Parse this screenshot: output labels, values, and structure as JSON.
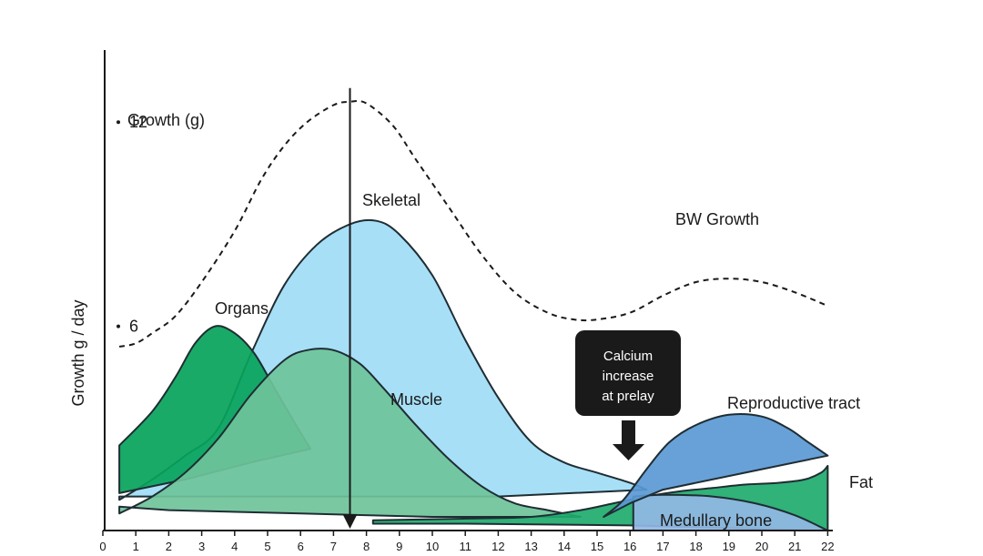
{
  "chart_data": {
    "type": "area",
    "ylabel": "Growth g / day",
    "x_ticks": [
      "0",
      "1",
      "2",
      "3",
      "4",
      "5",
      "6",
      "7",
      "8",
      "9",
      "10",
      "11",
      "12",
      "13",
      "14",
      "15",
      "16",
      "17",
      "18",
      "19",
      "20",
      "21",
      "22"
    ],
    "y_ticks": [
      {
        "value": 12,
        "label": "12"
      },
      {
        "value": 6,
        "label": "6"
      }
    ],
    "xlim": [
      0,
      22
    ],
    "ylim": [
      0,
      13.5
    ],
    "grid": false,
    "inline_note": "Growth (g)",
    "series": [
      {
        "name": "Skeletal",
        "style": "area",
        "color": "#9fdcf5",
        "upper": [
          [
            0.5,
            0.9
          ],
          [
            1.5,
            1.5
          ],
          [
            2.5,
            2.2
          ],
          [
            3.5,
            3.0
          ],
          [
            4.5,
            5.2
          ],
          [
            5.5,
            7.2
          ],
          [
            6.5,
            8.4
          ],
          [
            7.5,
            9.0
          ],
          [
            8.3,
            9.1
          ],
          [
            9.0,
            8.7
          ],
          [
            10.0,
            7.5
          ],
          [
            11.0,
            5.6
          ],
          [
            12.0,
            3.9
          ],
          [
            13.0,
            2.6
          ],
          [
            14.0,
            2.0
          ],
          [
            15.0,
            1.7
          ],
          [
            16.0,
            1.4
          ],
          [
            16.5,
            1.2
          ]
        ],
        "lower": [
          [
            16.5,
            1.2
          ],
          [
            12.0,
            1.0
          ],
          [
            8.0,
            1.0
          ],
          [
            4.0,
            1.0
          ],
          [
            0.5,
            1.0
          ]
        ]
      },
      {
        "name": "Organs",
        "style": "area",
        "color": "#07a35a",
        "upper": [
          [
            0.5,
            2.5
          ],
          [
            1.5,
            3.5
          ],
          [
            2.2,
            4.5
          ],
          [
            2.8,
            5.5
          ],
          [
            3.4,
            6.0
          ],
          [
            4.0,
            5.8
          ],
          [
            4.6,
            5.2
          ],
          [
            5.2,
            4.2
          ],
          [
            5.8,
            3.2
          ],
          [
            6.3,
            2.4
          ]
        ],
        "lower": [
          [
            6.3,
            2.4
          ],
          [
            4.5,
            2.0
          ],
          [
            2.5,
            1.5
          ],
          [
            0.5,
            1.1
          ]
        ]
      },
      {
        "name": "Muscle",
        "style": "area",
        "color": "#6fc39a",
        "upper": [
          [
            0.5,
            0.5
          ],
          [
            1.5,
            1.0
          ],
          [
            2.5,
            1.7
          ],
          [
            3.5,
            2.7
          ],
          [
            4.5,
            4.0
          ],
          [
            5.5,
            5.0
          ],
          [
            6.2,
            5.3
          ],
          [
            7.0,
            5.3
          ],
          [
            7.8,
            4.9
          ],
          [
            8.5,
            4.2
          ],
          [
            9.5,
            3.1
          ],
          [
            10.5,
            2.1
          ],
          [
            11.5,
            1.3
          ],
          [
            12.5,
            0.8
          ],
          [
            13.5,
            0.6
          ],
          [
            14.5,
            0.4
          ]
        ],
        "lower": [
          [
            14.5,
            0.4
          ],
          [
            10.0,
            0.4
          ],
          [
            6.0,
            0.5
          ],
          [
            2.0,
            0.6
          ],
          [
            0.5,
            0.7
          ]
        ]
      },
      {
        "name": "Fat",
        "style": "area",
        "color": "#1eab6c",
        "upper": [
          [
            8.2,
            0.3
          ],
          [
            11.0,
            0.35
          ],
          [
            13.0,
            0.4
          ],
          [
            14.5,
            0.6
          ],
          [
            15.5,
            0.8
          ],
          [
            16.5,
            1.0
          ],
          [
            17.5,
            1.15
          ],
          [
            18.5,
            1.25
          ],
          [
            19.5,
            1.35
          ],
          [
            20.5,
            1.4
          ],
          [
            21.3,
            1.5
          ],
          [
            21.8,
            1.7
          ],
          [
            22.0,
            1.9
          ]
        ],
        "lower": [
          [
            22.0,
            0.0
          ],
          [
            16.0,
            0.15
          ],
          [
            11.0,
            0.2
          ],
          [
            8.2,
            0.2
          ]
        ]
      },
      {
        "name": "Medullary bone",
        "style": "area",
        "color": "#93b7e5",
        "upper": [
          [
            16.1,
            1.0
          ],
          [
            17.0,
            1.05
          ],
          [
            18.5,
            1.0
          ],
          [
            19.8,
            0.8
          ],
          [
            21.0,
            0.45
          ],
          [
            22.0,
            0.0
          ]
        ],
        "lower": [
          [
            22.0,
            0.0
          ],
          [
            16.1,
            0.0
          ]
        ]
      },
      {
        "name": "Reproductive tract",
        "style": "area",
        "color": "#5a99d4",
        "upper": [
          [
            15.2,
            0.4
          ],
          [
            15.8,
            0.9
          ],
          [
            16.5,
            1.8
          ],
          [
            17.2,
            2.6
          ],
          [
            18.0,
            3.1
          ],
          [
            19.0,
            3.4
          ],
          [
            20.0,
            3.35
          ],
          [
            20.8,
            3.0
          ],
          [
            21.4,
            2.6
          ],
          [
            22.0,
            2.2
          ]
        ],
        "lower": [
          [
            22.0,
            2.2
          ],
          [
            19.5,
            1.7
          ],
          [
            17.0,
            1.2
          ],
          [
            16.0,
            0.8
          ],
          [
            15.2,
            0.4
          ]
        ]
      },
      {
        "name": "BW Growth",
        "style": "dashed",
        "color": "#1a1a1a",
        "points": [
          [
            0.5,
            5.4
          ],
          [
            1.0,
            5.5
          ],
          [
            1.5,
            5.8
          ],
          [
            2.2,
            6.3
          ],
          [
            3.0,
            7.3
          ],
          [
            4.0,
            8.8
          ],
          [
            4.8,
            10.3
          ],
          [
            5.5,
            11.3
          ],
          [
            6.2,
            12.0
          ],
          [
            7.0,
            12.5
          ],
          [
            7.5,
            12.6
          ],
          [
            8.0,
            12.55
          ],
          [
            8.8,
            11.9
          ],
          [
            9.5,
            10.9
          ],
          [
            10.5,
            9.5
          ],
          [
            11.5,
            8.1
          ],
          [
            12.5,
            7.0
          ],
          [
            13.5,
            6.4
          ],
          [
            14.3,
            6.2
          ],
          [
            15.0,
            6.2
          ],
          [
            16.0,
            6.4
          ],
          [
            17.0,
            6.9
          ],
          [
            18.0,
            7.3
          ],
          [
            19.0,
            7.4
          ],
          [
            20.0,
            7.3
          ],
          [
            21.0,
            7.0
          ],
          [
            22.0,
            6.6
          ]
        ]
      }
    ],
    "vertical_marker": {
      "x": 7.5,
      "from": 13.0,
      "to": 0.0
    },
    "annotation": {
      "text_lines": [
        "Calcium",
        "increase",
        "at prelay"
      ],
      "x": 15.9
    },
    "labels": {
      "skeletal": "Skeletal",
      "organs": "Organs",
      "muscle": "Muscle",
      "bw_growth": "BW Growth",
      "reproductive": "Reproductive tract",
      "fat": "Fat",
      "medullary": "Medullary bone"
    }
  }
}
